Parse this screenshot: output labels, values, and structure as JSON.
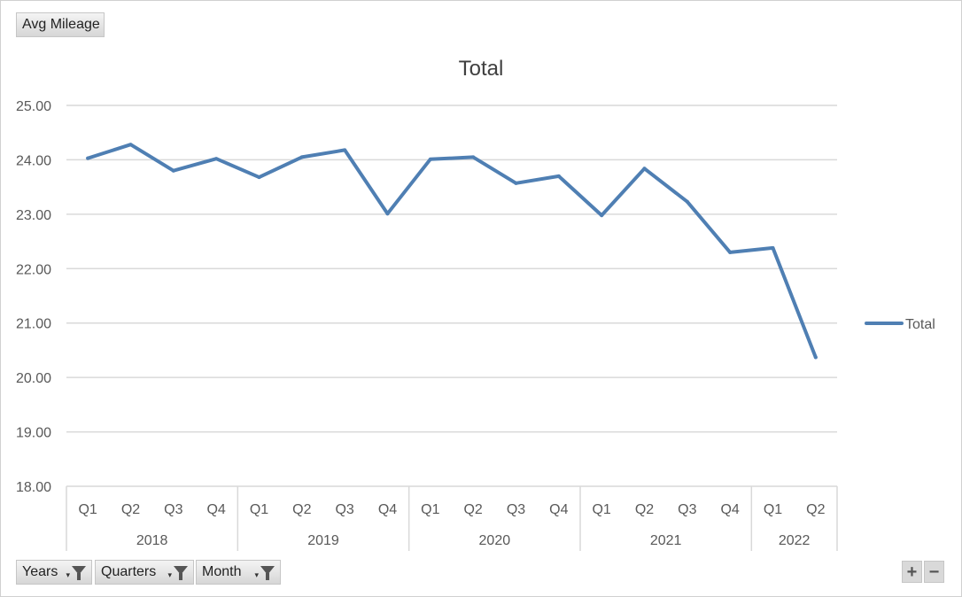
{
  "field_buttons": {
    "value_field": "Avg Mileage",
    "years": "Years",
    "quarters": "Quarters",
    "month": "Month"
  },
  "zoom": {
    "plus": "+",
    "minus": "−"
  },
  "colors": {
    "line": "#4f7fb3",
    "grid": "#d9d9d9",
    "axis_text": "#595959"
  },
  "icons": {
    "filter": "filter-funnel-icon",
    "dropdown": "dropdown-arrow-icon"
  },
  "chart_data": {
    "type": "line",
    "title": "Total",
    "categories": [
      "Q1",
      "Q2",
      "Q3",
      "Q4",
      "Q1",
      "Q2",
      "Q3",
      "Q4",
      "Q1",
      "Q2",
      "Q3",
      "Q4",
      "Q1",
      "Q2",
      "Q3",
      "Q4",
      "Q1",
      "Q2"
    ],
    "groups": [
      {
        "label": "2018",
        "count": 4
      },
      {
        "label": "2019",
        "count": 4
      },
      {
        "label": "2020",
        "count": 4
      },
      {
        "label": "2021",
        "count": 4
      },
      {
        "label": "2022",
        "count": 2
      }
    ],
    "series": [
      {
        "name": "Total",
        "values": [
          24.03,
          24.28,
          23.8,
          24.02,
          23.68,
          24.05,
          24.18,
          23.01,
          24.01,
          24.05,
          23.57,
          23.7,
          22.98,
          23.84,
          23.23,
          22.3,
          22.38,
          20.37
        ]
      }
    ],
    "ylim": [
      18,
      25
    ],
    "yticks": [
      "25.00",
      "24.00",
      "23.00",
      "22.00",
      "21.00",
      "20.00",
      "19.00",
      "18.00"
    ],
    "grid": true,
    "legend": "right"
  }
}
